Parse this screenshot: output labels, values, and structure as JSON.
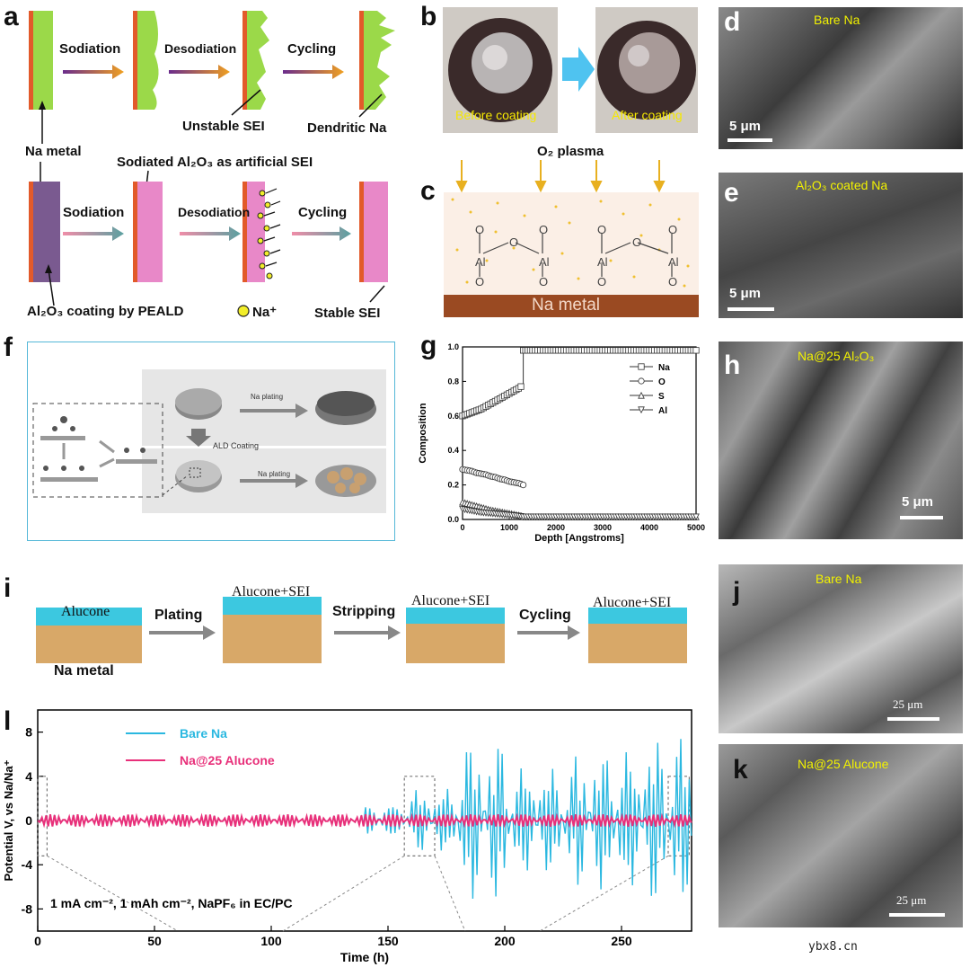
{
  "panels": {
    "a": "a",
    "b": "b",
    "c": "c",
    "d": "d",
    "e": "e",
    "f": "f",
    "g": "g",
    "h": "h",
    "i": "i",
    "j": "j",
    "k": "k",
    "l": "l"
  },
  "panel_a": {
    "top_steps": [
      "Sodiation",
      "Desodiation",
      "Cycling"
    ],
    "unstable_sei": "Unstable SEI",
    "dendritic_na": "Dendritic Na",
    "na_metal": "Na metal",
    "artificial_sei": "Sodiated Al₂O₃ as artificial SEI",
    "bottom_steps": [
      "Sodiation",
      "Desodiation",
      "Cycling"
    ],
    "coating": "Al₂O₃ coating by PEALD",
    "na_ion": "Na⁺",
    "stable_sei": "Stable SEI"
  },
  "panel_b": {
    "before": "Before coating",
    "after": "After coating"
  },
  "panel_c": {
    "plasma": "O₂ plasma",
    "substrate": "Na metal",
    "o": "O",
    "al": "Al"
  },
  "panel_d": {
    "caption": "Bare Na",
    "scale": "5 μm"
  },
  "panel_e": {
    "caption": "Al₂O₃ coated Na",
    "scale": "5 μm"
  },
  "panel_f": {
    "na_plating_1": "Na plating",
    "ald": "ALD Coating",
    "na_plating_2": "Na plating"
  },
  "panel_h": {
    "caption": "Na@25 Al₂O₃",
    "scale": "5 μm"
  },
  "panel_i": {
    "alucone": "Alucone",
    "steps": [
      "Plating",
      "Stripping",
      "Cycling"
    ],
    "layer": "Alucone+SEI",
    "na_metal": "Na metal"
  },
  "panel_j": {
    "caption": "Bare Na",
    "scale": "25 μm"
  },
  "panel_k": {
    "caption": "Na@25 Alucone",
    "scale": "25 μm"
  },
  "watermark": "ybx8.cn",
  "chart_data": [
    {
      "id": "g",
      "type": "line",
      "xlabel": "Depth [Angstroms]",
      "ylabel": "Composition",
      "xlim": [
        0,
        5000
      ],
      "ylim": [
        0,
        1.0
      ],
      "xticks": [
        0,
        1000,
        2000,
        3000,
        4000,
        5000
      ],
      "yticks": [
        0.0,
        0.2,
        0.4,
        0.6,
        0.8,
        1.0
      ],
      "legend_position": "top-right",
      "series": [
        {
          "name": "Na",
          "marker": "square",
          "x": [
            0,
            100,
            200,
            300,
            400,
            500,
            600,
            700,
            800,
            900,
            1000,
            1100,
            1200,
            1300,
            1300,
            1500,
            2000,
            2500,
            3000,
            3500,
            4000,
            4500,
            5000
          ],
          "values": [
            0.6,
            0.61,
            0.62,
            0.63,
            0.64,
            0.655,
            0.67,
            0.685,
            0.7,
            0.715,
            0.73,
            0.745,
            0.76,
            0.78,
            0.98,
            0.98,
            0.98,
            0.98,
            0.98,
            0.98,
            0.98,
            0.98,
            0.98
          ]
        },
        {
          "name": "O",
          "marker": "circle",
          "x": [
            0,
            100,
            200,
            300,
            400,
            500,
            600,
            700,
            800,
            900,
            1000,
            1100,
            1200,
            1300
          ],
          "values": [
            0.29,
            0.285,
            0.28,
            0.27,
            0.265,
            0.26,
            0.25,
            0.245,
            0.235,
            0.23,
            0.22,
            0.215,
            0.21,
            0.2
          ]
        },
        {
          "name": "S",
          "marker": "triangle-up",
          "x": [
            0,
            200,
            400,
            600,
            800,
            1000,
            1200,
            1300,
            2000,
            3000,
            4000,
            5000
          ],
          "values": [
            0.1,
            0.085,
            0.07,
            0.055,
            0.045,
            0.035,
            0.025,
            0.015,
            0.015,
            0.015,
            0.015,
            0.015
          ]
        },
        {
          "name": "Al",
          "marker": "triangle-down",
          "x": [
            0,
            200,
            400,
            600,
            800,
            1000,
            1200,
            1300,
            2000,
            3000,
            4000,
            5000
          ],
          "values": [
            0.06,
            0.05,
            0.04,
            0.035,
            0.03,
            0.025,
            0.02,
            0.015,
            0.015,
            0.015,
            0.015,
            0.015
          ]
        }
      ]
    },
    {
      "id": "l",
      "type": "line",
      "xlabel": "Time (h)",
      "ylabel": "Potential V, vs Na/Na⁺",
      "xlim": [
        0,
        280
      ],
      "ylim": [
        -10,
        10
      ],
      "xticks": [
        0,
        50,
        100,
        150,
        200,
        250
      ],
      "yticks": [
        -8,
        -4,
        0,
        4,
        8
      ],
      "legend_position": "top-left",
      "annotation": "1 mA cm⁻², 1 mAh cm⁻², NaPF₆ in EC/PC",
      "series": [
        {
          "name": "Bare Na",
          "color": "#2bb8e0",
          "segments": [
            {
              "t_start": 0,
              "t_end": 140,
              "amplitude": 0.4
            },
            {
              "t_start": 140,
              "t_end": 160,
              "amplitude": 1.2
            },
            {
              "t_start": 160,
              "t_end": 180,
              "amplitude": 3.0
            },
            {
              "t_start": 180,
              "t_end": 200,
              "amplitude": 7.5
            },
            {
              "t_start": 200,
              "t_end": 230,
              "amplitude": 5.0
            },
            {
              "t_start": 230,
              "t_end": 260,
              "amplitude": 6.5
            },
            {
              "t_start": 260,
              "t_end": 280,
              "amplitude": 7.8
            }
          ]
        },
        {
          "name": "Na@25 Alucone",
          "color": "#e8307a",
          "segments": [
            {
              "t_start": 0,
              "t_end": 280,
              "amplitude": 0.55
            }
          ]
        }
      ]
    }
  ]
}
